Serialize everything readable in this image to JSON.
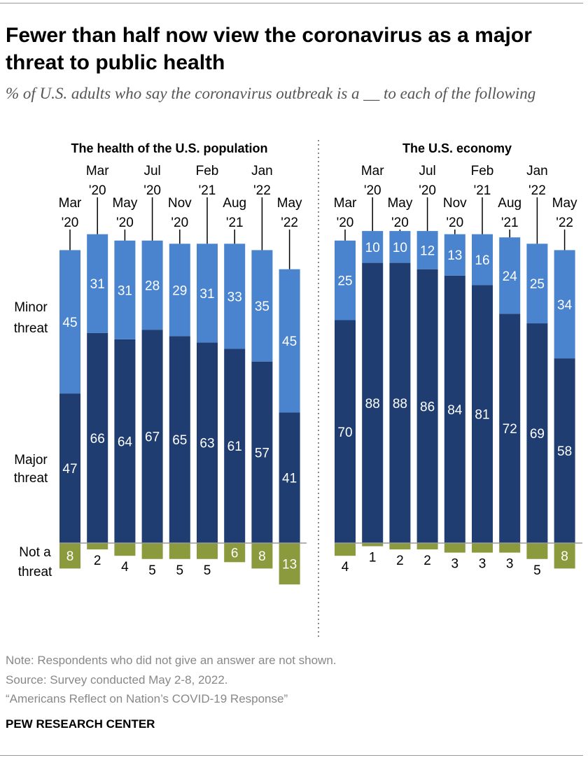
{
  "title": "Fewer than half now view the coronavirus as a major threat to public health",
  "subtitle": "% of U.S. adults who say the coronavirus outbreak is a __ to each of the following",
  "row_labels": {
    "minor": [
      "Minor",
      "threat"
    ],
    "major": [
      "Major",
      "threat"
    ],
    "not": [
      "Not a",
      "threat"
    ]
  },
  "colors": {
    "major": "#1f3d70",
    "minor": "#4a84cf",
    "not": "#8a9a3c"
  },
  "chart_data": {
    "type": "bar",
    "stacked": true,
    "panels": [
      {
        "title": "The health of the U.S. population",
        "categories": [
          [
            "Mar",
            "'20"
          ],
          [
            "Mar",
            "'20"
          ],
          [
            "May",
            "'20"
          ],
          [
            "Jul",
            "'20"
          ],
          [
            "Nov",
            "'20"
          ],
          [
            "Feb",
            "'21"
          ],
          [
            "Aug",
            "'21"
          ],
          [
            "Jan",
            "'22"
          ],
          [
            "May",
            "'22"
          ]
        ],
        "series": [
          {
            "name": "Major threat",
            "values": [
              47,
              66,
              64,
              67,
              65,
              63,
              61,
              57,
              41
            ]
          },
          {
            "name": "Minor threat",
            "values": [
              45,
              31,
              31,
              28,
              29,
              31,
              33,
              35,
              45
            ]
          },
          {
            "name": "Not a threat",
            "values": [
              8,
              2,
              4,
              5,
              5,
              5,
              6,
              8,
              13
            ]
          }
        ]
      },
      {
        "title": "The U.S. economy",
        "categories": [
          [
            "Mar",
            "'20"
          ],
          [
            "Mar",
            "'20"
          ],
          [
            "May",
            "'20"
          ],
          [
            "Jul",
            "'20"
          ],
          [
            "Nov",
            "'20"
          ],
          [
            "Feb",
            "'21"
          ],
          [
            "Aug",
            "'21"
          ],
          [
            "Jan",
            "'22"
          ],
          [
            "May",
            "'22"
          ]
        ],
        "series": [
          {
            "name": "Major threat",
            "values": [
              70,
              88,
              88,
              86,
              84,
              81,
              72,
              69,
              58
            ]
          },
          {
            "name": "Minor threat",
            "values": [
              25,
              10,
              10,
              12,
              13,
              16,
              24,
              25,
              34
            ]
          },
          {
            "name": "Not a threat",
            "values": [
              4,
              1,
              2,
              2,
              3,
              3,
              3,
              5,
              8
            ]
          }
        ]
      }
    ]
  },
  "footer": {
    "note": "Note: Respondents who did not give an answer are not shown.",
    "source": "Source: Survey conducted May 2-8, 2022.",
    "report": "“Americans Reflect on Nation’s COVID-19 Response”",
    "brand": "PEW RESEARCH CENTER"
  }
}
